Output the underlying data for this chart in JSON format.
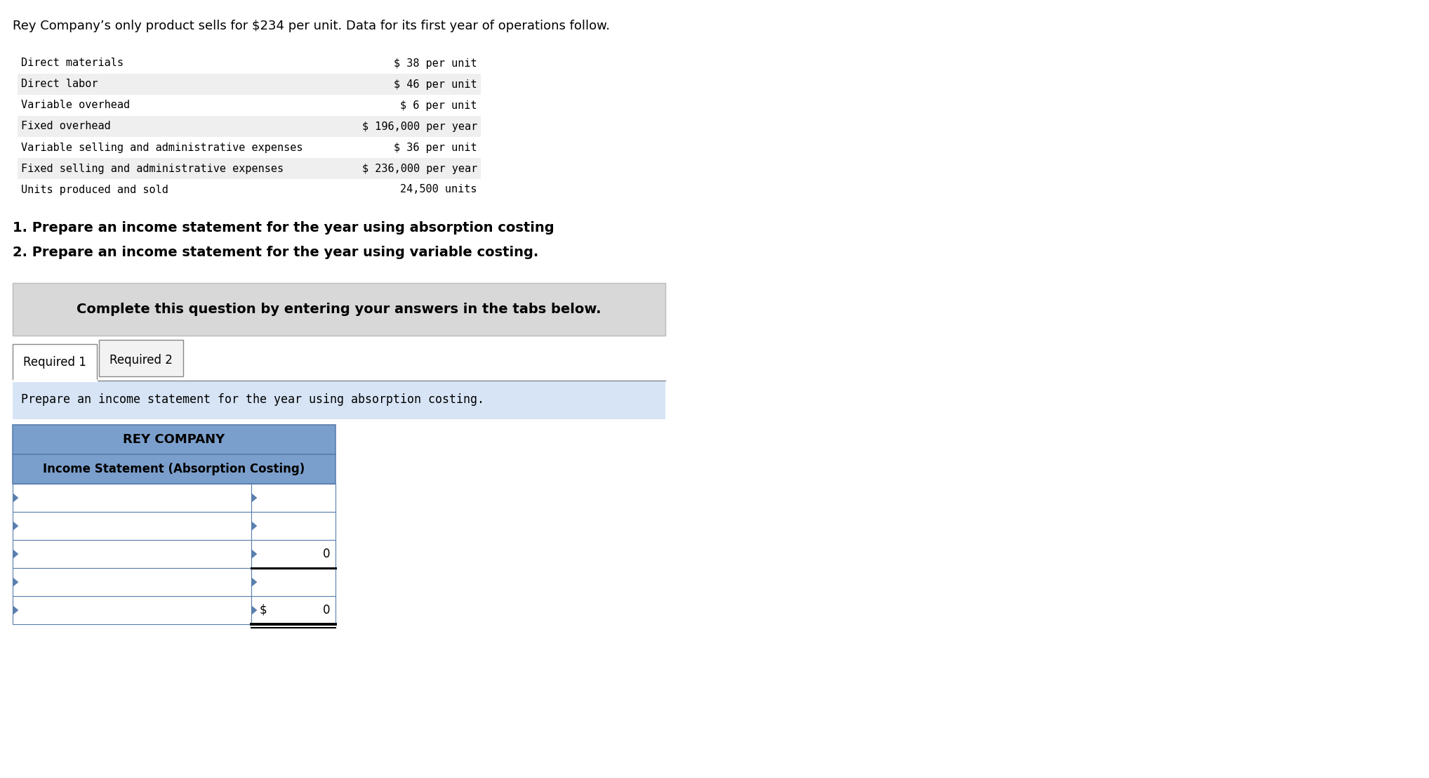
{
  "intro_text": "Rey Company’s only product sells for $234 per unit. Data for its first year of operations follow.",
  "data_rows": [
    {
      "label": "Direct materials",
      "value": "$ 38 per unit"
    },
    {
      "label": "Direct labor",
      "value": "$ 46 per unit"
    },
    {
      "label": "Variable overhead",
      "value": "$ 6 per unit"
    },
    {
      "label": "Fixed overhead",
      "value": "$ 196,000 per year"
    },
    {
      "label": "Variable selling and administrative expenses",
      "value": "$ 36 per unit"
    },
    {
      "label": "Fixed selling and administrative expenses",
      "value": "$ 236,000 per year"
    },
    {
      "label": "Units produced and sold",
      "value": "24,500 units"
    }
  ],
  "numbered_items": [
    "1. Prepare an income statement for the year using absorption costing",
    "2. Prepare an income statement for the year using variable costing."
  ],
  "complete_text": "Complete this question by entering your answers in the tabs below.",
  "tab1_label": "Required 1",
  "tab2_label": "Required 2",
  "instruction_text": "Prepare an income statement for the year using absorption costing.",
  "table_title1": "REY COMPANY",
  "table_title2": "Income Statement (Absorption Costing)",
  "table_header_bg": "#7B9FCC",
  "table_border_color": "#5A7FAF",
  "num_data_rows": 5,
  "row3_value": "0",
  "row5_dollar": "$",
  "row5_value": "0",
  "complete_box_bg": "#D8D8D8",
  "instruction_box_bg": "#D6E4F5",
  "bg_color": "#FFFFFF",
  "monospace_font": "DejaVu Sans Mono",
  "data_row_alt_bg": "#EFEFEF"
}
